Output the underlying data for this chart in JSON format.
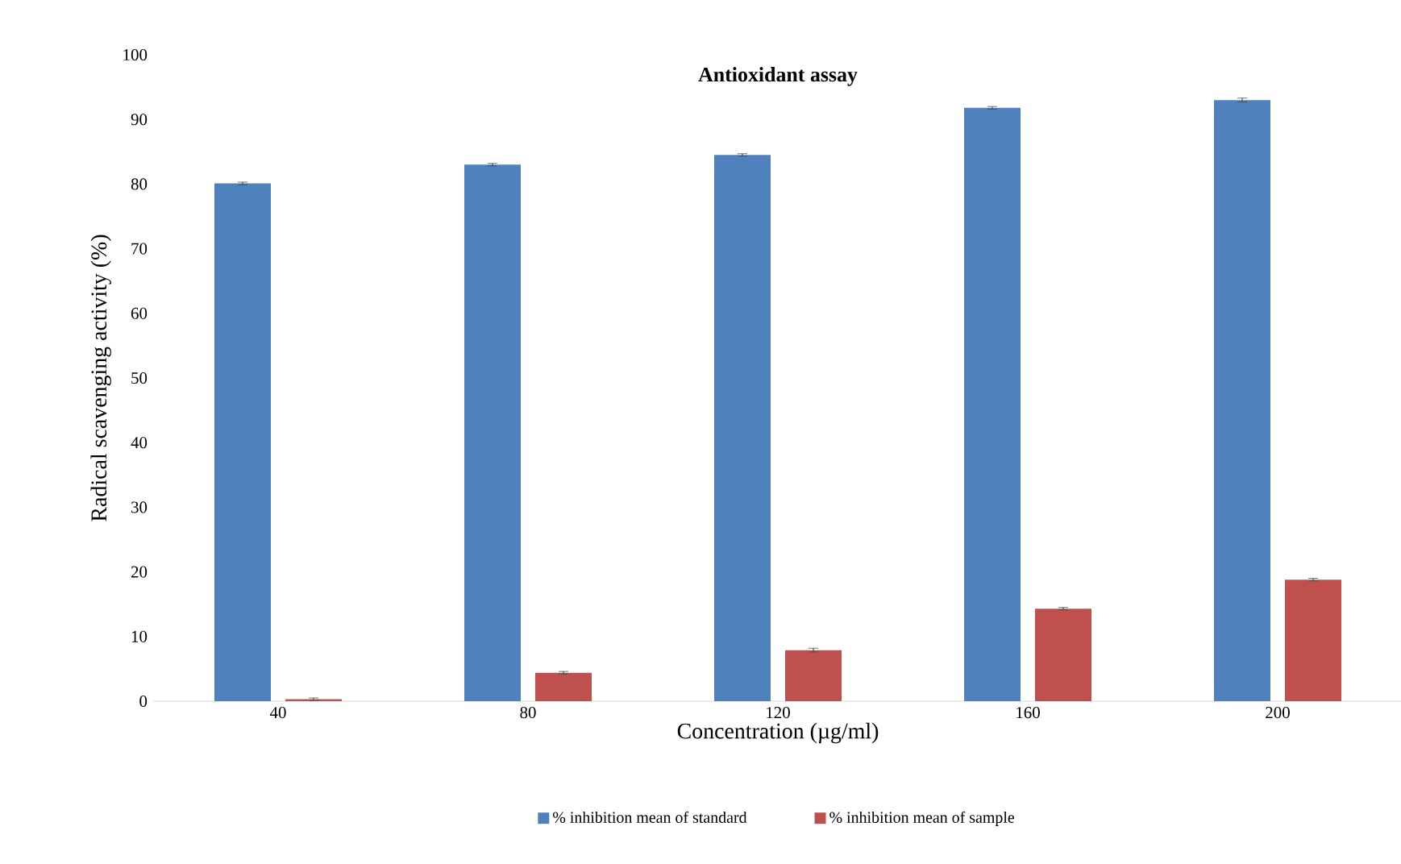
{
  "chart_data": {
    "type": "bar",
    "title": "Antioxidant assay",
    "xlabel": "Concentration (µg/ml)",
    "ylabel": "Radical scavenging activity (%)",
    "categories": [
      "40",
      "80",
      "120",
      "160",
      "200"
    ],
    "series": [
      {
        "name": "% inhibition mean of standard",
        "color": "#4f81bd",
        "values": [
          80.1,
          83.0,
          84.5,
          91.8,
          93.0
        ],
        "errors": [
          0.2,
          0.2,
          0.2,
          0.2,
          0.3
        ]
      },
      {
        "name": "% inhibition mean of sample",
        "color": "#c0504d",
        "values": [
          0.3,
          4.4,
          7.9,
          14.3,
          18.8
        ],
        "errors": [
          0.2,
          0.2,
          0.3,
          0.2,
          0.2
        ]
      }
    ],
    "ylim": [
      0,
      100
    ],
    "yticks": [
      0,
      10,
      20,
      30,
      40,
      50,
      60,
      70,
      80,
      90,
      100
    ],
    "grid": false,
    "legend": "bottom"
  }
}
